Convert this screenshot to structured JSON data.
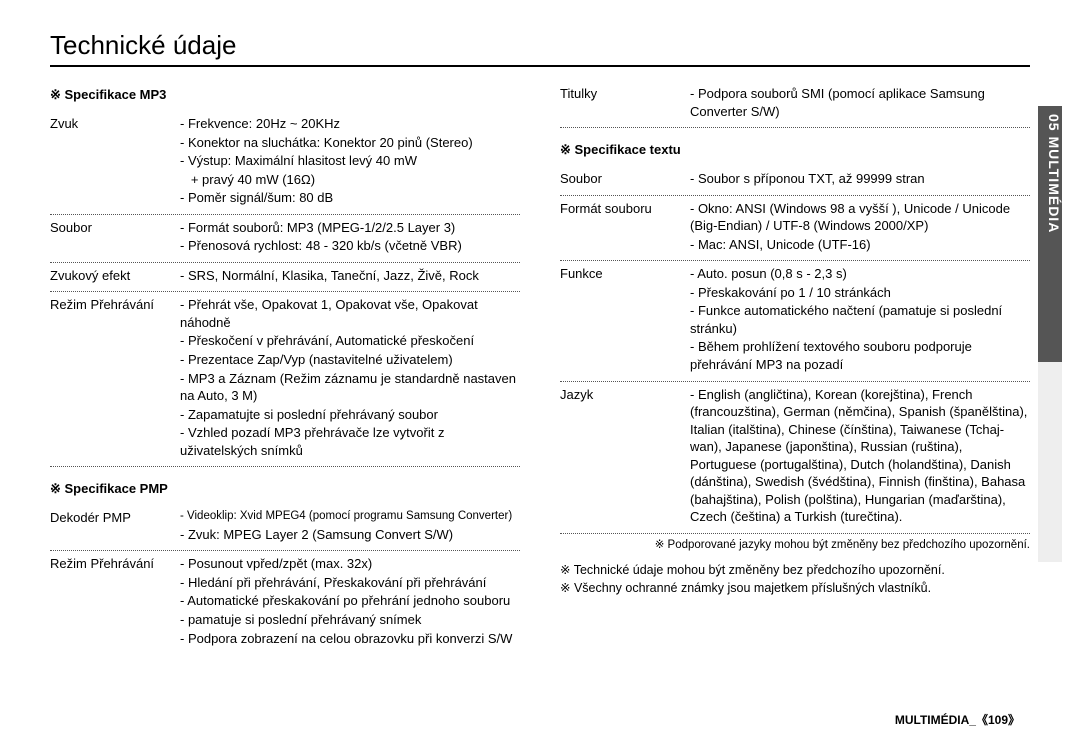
{
  "title": "Technické údaje",
  "left": {
    "sec1": {
      "head": "※ Specifikace MP3",
      "rows": [
        {
          "label": "Zvuk",
          "lines": [
            "- Frekvence: 20Hz ~ 20KHz",
            "- Konektor na sluchátka: Konektor 20 pinů (Stereo)",
            "- Výstup: Maximální hlasitost levý 40 mW",
            "   + pravý 40 mW (16Ω)",
            "- Poměr signál/šum: 80 dB"
          ]
        },
        {
          "label": "Soubor",
          "lines": [
            "- Formát souborů: MP3 (MPEG-1/2/2.5 Layer 3)",
            "- Přenosová rychlost: 48 - 320 kb/s (včetně VBR)"
          ]
        },
        {
          "label": "Zvukový efekt",
          "lines": [
            "- SRS, Normální, Klasika, Taneční, Jazz, Živě, Rock"
          ]
        },
        {
          "label": "Režim Přehrávání",
          "lines": [
            "- Přehrát vše, Opakovat 1, Opakovat vše, Opakovat náhodně",
            "- Přeskočení v přehrávání, Automatické přeskočení",
            "- Prezentace Zap/Vyp (nastavitelné uživatelem)",
            "- MP3 a Záznam (Režim záznamu je standardně nastaven na Auto, 3 M)",
            "- Zapamatujte si poslední přehrávaný soubor",
            "- Vzhled pozadí MP3 přehrávače lze vytvořit z uživatelských snímků"
          ]
        }
      ]
    },
    "sec2": {
      "head": "※ Specifikace PMP",
      "rows": [
        {
          "label": "Dekodér PMP",
          "lines": [
            "- Videoklip: Xvid MPEG4 (pomocí programu Samsung Converter)",
            "- Zvuk: MPEG Layer 2 (Samsung Convert S/W)"
          ],
          "small_first": true
        },
        {
          "label": "Režim Přehrávání",
          "lines": [
            "- Posunout vpřed/zpět (max. 32x)",
            "- Hledání při přehrávání, Přeskakování při přehrávání",
            "- Automatické přeskakování po přehrání jednoho souboru",
            "- pamatuje si poslední přehrávaný snímek",
            "- Podpora zobrazení na celou obrazovku při konverzi S/W"
          ],
          "no_border": true
        }
      ]
    }
  },
  "right": {
    "preRows": [
      {
        "label": "Titulky",
        "lines": [
          "- Podpora souborů SMI (pomocí aplikace Samsung Converter S/W)"
        ]
      }
    ],
    "sec1": {
      "head": "※ Specifikace textu",
      "rows": [
        {
          "label": "Soubor",
          "lines": [
            "- Soubor s příponou TXT, až 99999 stran"
          ]
        },
        {
          "label": "Formát souboru",
          "lines": [
            "- Okno: ANSI (Windows 98 a vyšší ), Unicode / Unicode (Big-Endian) / UTF-8 (Windows 2000/XP)",
            "- Mac: ANSI, Unicode (UTF-16)"
          ]
        },
        {
          "label": "Funkce",
          "lines": [
            "- Auto. posun (0,8 s - 2,3 s)",
            "- Přeskakování po 1 / 10 stránkách",
            "- Funkce automatického načtení (pamatuje si poslední stránku)",
            "- Během prohlížení textového souboru podporuje přehrávání MP3 na pozadí"
          ]
        },
        {
          "label": "Jazyk",
          "lines": [
            "- English (angličtina), Korean (korejština), French (francouzština), German (němčina), Spanish (španělština), Italian (italština), Chinese (čínština), Taiwanese (Tchaj-wan), Japanese (japonština), Russian (ruština), Portuguese (portugalština), Dutch (holandština), Danish (dánština), Swedish (švédština), Finnish (finština), Bahasa (bahajština), Polish (polština), Hungarian (maďarština), Czech (čeština) a Turkish (turečtina)."
          ]
        }
      ]
    },
    "endnote": "※ Podporované jazyky mohou být změněny bez předchozího upozornění.",
    "footnotes": [
      "※ Technické údaje mohou být změněny bez předchozího upozornění.",
      "※ Všechny ochranné známky jsou majetkem příslušných vlastníků."
    ]
  },
  "sidebar": "05 MULTIMÉDIA",
  "footer": "MULTIMÉDIA_《109》"
}
